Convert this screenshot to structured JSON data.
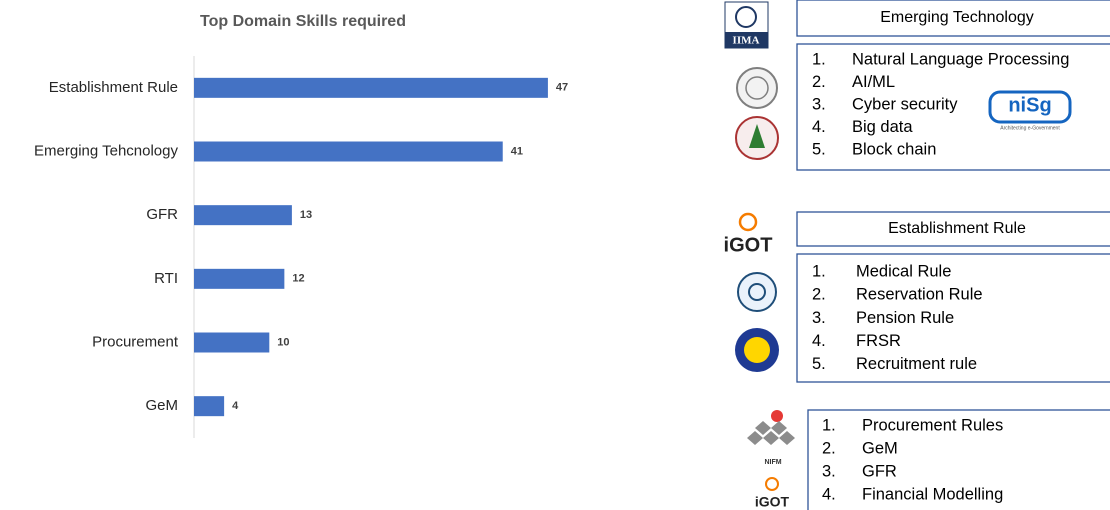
{
  "chart_data": {
    "type": "hbar",
    "title": "Top Domain Skills required",
    "categories": [
      "Establishment Rule",
      "Emerging Tehcnology",
      "GFR",
      "RTI",
      "Procurement",
      "GeM"
    ],
    "values": [
      47,
      41,
      13,
      12,
      10,
      4
    ],
    "color": "#4472c4"
  },
  "panels": [
    {
      "header": "Emerging Technology",
      "items": [
        {
          "n": "1.",
          "text": "Natural Language Processing"
        },
        {
          "n": "2.",
          "text": "AI/ML"
        },
        {
          "n": "3.",
          "text": "Cyber security"
        },
        {
          "n": "4.",
          "text": "Big data"
        },
        {
          "n": "5.",
          "text": "Block chain"
        }
      ]
    },
    {
      "header": "Establishment Rule",
      "items": [
        {
          "n": "1.",
          "text": "Medical Rule"
        },
        {
          "n": "2.",
          "text": "Reservation Rule"
        },
        {
          "n": "3.",
          "text": "Pension Rule"
        },
        {
          "n": "4.",
          "text": "FRSR"
        },
        {
          "n": "5.",
          "text": "Recruitment rule"
        }
      ]
    },
    {
      "items": [
        {
          "n": "1.",
          "text": "Procurement Rules"
        },
        {
          "n": "2.",
          "text": "GeM"
        },
        {
          "n": "3.",
          "text": "GFR"
        },
        {
          "n": "4.",
          "text": "Financial Modelling"
        }
      ]
    }
  ],
  "logos": {
    "iima": "IIMA",
    "nisg": "niSg",
    "nisg_tag": "Architecting e-Government",
    "igot": "iGOT",
    "nifm": "NIFM"
  }
}
